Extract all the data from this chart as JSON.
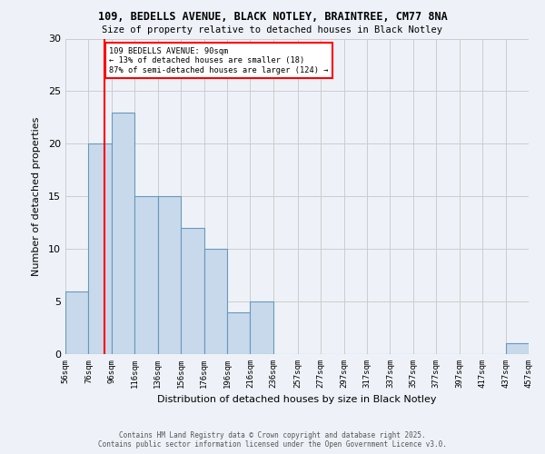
{
  "title_line1": "109, BEDELLS AVENUE, BLACK NOTLEY, BRAINTREE, CM77 8NA",
  "title_line2": "Size of property relative to detached houses in Black Notley",
  "xlabel": "Distribution of detached houses by size in Black Notley",
  "ylabel": "Number of detached properties",
  "bar_color": "#c9d9ec",
  "bar_edge_color": "#6699bb",
  "grid_color": "#cccccc",
  "bg_color": "#eef2f8",
  "bin_lefts": [
    56,
    76,
    96,
    116,
    136,
    156,
    176,
    196,
    216,
    236,
    257,
    277,
    297,
    317,
    337,
    357,
    377,
    397,
    417,
    437
  ],
  "bin_widths": [
    20,
    20,
    20,
    20,
    20,
    20,
    20,
    20,
    20,
    21,
    20,
    20,
    20,
    20,
    20,
    20,
    20,
    20,
    20,
    20
  ],
  "bin_labels": [
    "56sqm",
    "76sqm",
    "96sqm",
    "116sqm",
    "136sqm",
    "156sqm",
    "176sqm",
    "196sqm",
    "216sqm",
    "236sqm",
    "257sqm",
    "277sqm",
    "297sqm",
    "317sqm",
    "337sqm",
    "357sqm",
    "377sqm",
    "397sqm",
    "417sqm",
    "437sqm",
    "457sqm"
  ],
  "counts": [
    6,
    20,
    23,
    15,
    15,
    12,
    10,
    4,
    5,
    0,
    0,
    0,
    0,
    0,
    0,
    0,
    0,
    0,
    0,
    1
  ],
  "vline_x": 90,
  "annotation_text_line1": "109 BEDELLS AVENUE: 90sqm",
  "annotation_text_line2": "← 13% of detached houses are smaller (18)",
  "annotation_text_line3": "87% of semi-detached houses are larger (124) →",
  "vline_color": "red",
  "annotation_box_color": "white",
  "annotation_box_edge_color": "red",
  "footer_line1": "Contains HM Land Registry data © Crown copyright and database right 2025.",
  "footer_line2": "Contains public sector information licensed under the Open Government Licence v3.0.",
  "ylim": [
    0,
    30
  ],
  "yticks": [
    0,
    5,
    10,
    15,
    20,
    25,
    30
  ],
  "xlim_left": 56,
  "xlim_right": 457
}
